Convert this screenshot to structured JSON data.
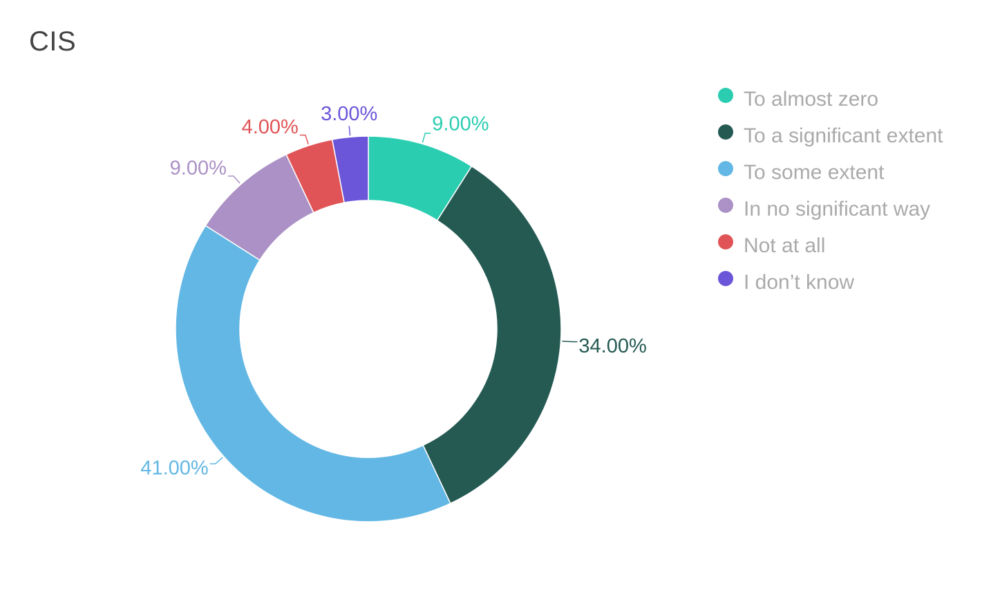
{
  "title": "CIS",
  "chart_data": {
    "type": "pie",
    "variant": "donut",
    "title": "CIS",
    "value_format": "percent",
    "legend_position": "right",
    "slices": [
      {
        "name": "To almost zero",
        "value": 9.0,
        "label": "9.00%",
        "color": "#2bcdb1"
      },
      {
        "name": "To a significant extent",
        "value": 34.0,
        "label": "34.00%",
        "color": "#255a53"
      },
      {
        "name": "To some extent",
        "value": 41.0,
        "label": "41.00%",
        "color": "#62b7e4"
      },
      {
        "name": "In no significant way",
        "value": 9.0,
        "label": "9.00%",
        "color": "#ab91c5"
      },
      {
        "name": "Not at all",
        "value": 4.0,
        "label": "4.00%",
        "color": "#e05457"
      },
      {
        "name": "I don’t know",
        "value": 3.0,
        "label": "3.00%",
        "color": "#6b55d9"
      }
    ]
  }
}
